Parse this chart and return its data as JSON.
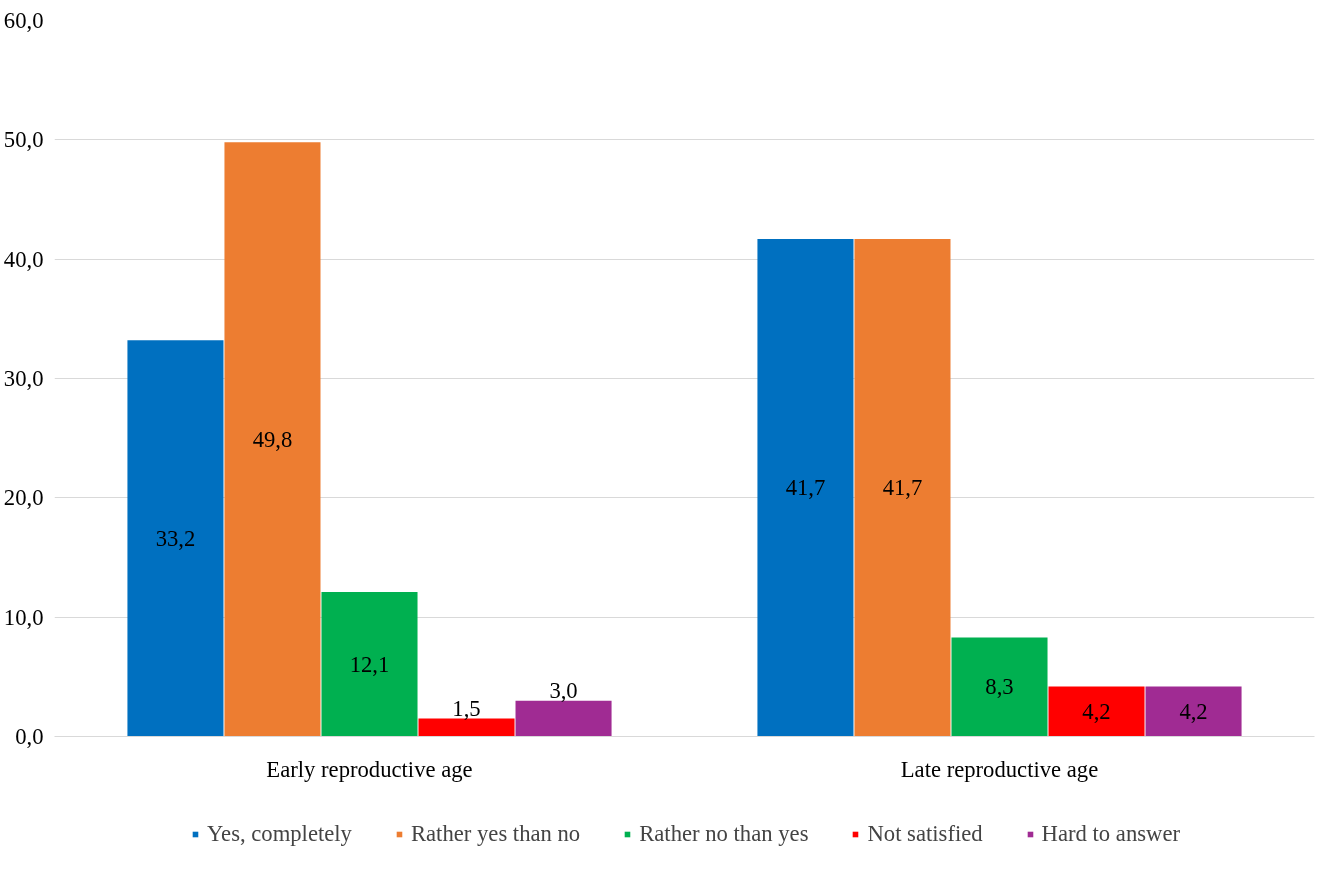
{
  "chart_data": {
    "type": "bar",
    "categories": [
      "Early reproductive age",
      "Late reproductive age"
    ],
    "series": [
      {
        "name": "Yes, completely",
        "color": "#0070c0",
        "values": [
          33.2,
          41.7
        ],
        "value_labels": [
          "33,2",
          "41,7"
        ]
      },
      {
        "name": "Rather yes than no",
        "color": "#ed7d31",
        "values": [
          49.8,
          41.7
        ],
        "value_labels": [
          "49,8",
          "41,7"
        ]
      },
      {
        "name": "Rather no than yes",
        "color": "#00b050",
        "values": [
          12.1,
          8.3
        ],
        "value_labels": [
          "12,1",
          "8,3"
        ]
      },
      {
        "name": "Not satisfied",
        "color": "#ff0000",
        "values": [
          1.5,
          4.2
        ],
        "value_labels": [
          "1,5",
          "4,2"
        ]
      },
      {
        "name": "Hard to answer",
        "color": "#a02b93",
        "values": [
          3.0,
          4.2
        ],
        "value_labels": [
          "3,0",
          "4,2"
        ]
      }
    ],
    "ylim": [
      0,
      60
    ],
    "yticks": [
      {
        "value": 0,
        "label": "0,0"
      },
      {
        "value": 10,
        "label": "10,0"
      },
      {
        "value": 20,
        "label": "20,0"
      },
      {
        "value": 30,
        "label": "30,0"
      },
      {
        "value": 40,
        "label": "40,0"
      },
      {
        "value": 50,
        "label": "50,0"
      },
      {
        "value": 60,
        "label": "60,0"
      }
    ],
    "grid": "y",
    "legend": "bottom"
  }
}
